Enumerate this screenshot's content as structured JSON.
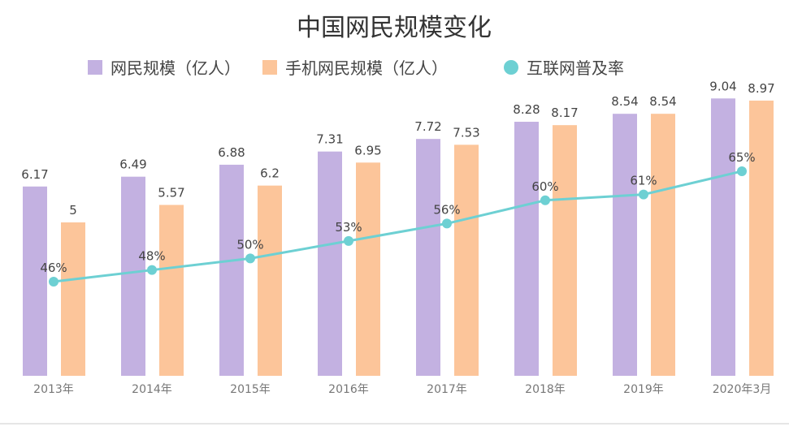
{
  "chart_data": {
    "type": "bar",
    "title": "中国网民规模变化",
    "categories": [
      "2013年",
      "2014年",
      "2015年",
      "2016年",
      "2017年",
      "2018年",
      "2019年",
      "2020年3月"
    ],
    "series": [
      {
        "name": "网民规模（亿人）",
        "type": "bar",
        "color": "#c3b1e1",
        "values": [
          6.17,
          6.49,
          6.88,
          7.31,
          7.72,
          8.28,
          8.54,
          9.04
        ],
        "labels": [
          "6.17",
          "6.49",
          "6.88",
          "7.31",
          "7.72",
          "8.28",
          "8.54",
          "9.04"
        ]
      },
      {
        "name": "手机网民规模（亿人）",
        "type": "bar",
        "color": "#fcc59a",
        "values": [
          5,
          5.57,
          6.2,
          6.95,
          7.53,
          8.17,
          8.54,
          8.97
        ],
        "labels": [
          "5",
          "5.57",
          "6.2",
          "6.95",
          "7.53",
          "8.17",
          "8.54",
          "8.97"
        ]
      },
      {
        "name": "互联网普及率",
        "type": "line",
        "color": "#6dd0d3",
        "values": [
          46,
          48,
          50,
          53,
          56,
          60,
          61,
          65
        ],
        "labels": [
          "46%",
          "48%",
          "50%",
          "53%",
          "56%",
          "60%",
          "61%",
          "65%"
        ]
      }
    ],
    "grid": false,
    "legend": "top"
  }
}
